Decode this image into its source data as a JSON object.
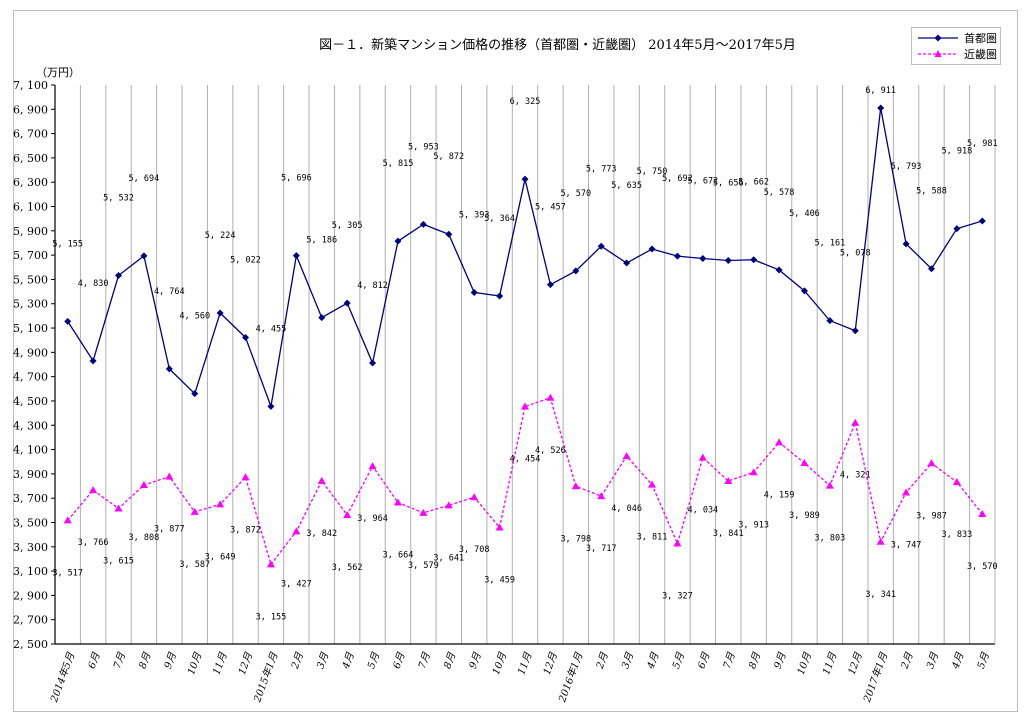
{
  "chart_data": {
    "type": "line",
    "title": "図－１．新築マンション価格の推移（首都圏・近畿圏） 2014年5月～2017年5月",
    "ylabel": "（万円）",
    "xlabel": "",
    "ylim": [
      2500,
      7100
    ],
    "yticks": [
      "7,100",
      "6,900",
      "6,700",
      "6,500",
      "6,300",
      "6,100",
      "5,900",
      "5,700",
      "5,500",
      "5,300",
      "5,100",
      "4,900",
      "4,700",
      "4,500",
      "4,300",
      "4,100",
      "3,900",
      "3,700",
      "3,500",
      "3,300",
      "3,100",
      "2,900",
      "2,700",
      "2,500"
    ],
    "grid": "vertical",
    "legend_position": "top-right",
    "categories": [
      "2014年5月",
      "6月",
      "7月",
      "8月",
      "9月",
      "10月",
      "11月",
      "12月",
      "2015年1月",
      "2月",
      "3月",
      "4月",
      "5月",
      "6月",
      "7月",
      "8月",
      "9月",
      "10月",
      "11月",
      "12月",
      "2016年1月",
      "2月",
      "3月",
      "4月",
      "5月",
      "6月",
      "7月",
      "8月",
      "9月",
      "10月",
      "11月",
      "12月",
      "2017年1月",
      "2月",
      "3月",
      "4月",
      "5月"
    ],
    "series": [
      {
        "name": "首都圏",
        "color": "#000080",
        "marker": "diamond",
        "style": "solid",
        "values": [
          5155,
          4830,
          5532,
          5694,
          4764,
          4560,
          5224,
          5022,
          4455,
          5696,
          5186,
          5305,
          4812,
          5815,
          5953,
          5872,
          5393,
          5364,
          6325,
          5457,
          5570,
          5773,
          5635,
          5750,
          5692,
          5672,
          5656,
          5662,
          5578,
          5406,
          5161,
          5078,
          6911,
          5793,
          5588,
          5918,
          5981
        ]
      },
      {
        "name": "近畿圏",
        "color": "#ff00ff",
        "marker": "triangle",
        "style": "dashed",
        "values": [
          3517,
          3766,
          3615,
          3808,
          3877,
          3587,
          3649,
          3872,
          3155,
          3427,
          3842,
          3562,
          3964,
          3664,
          3579,
          3641,
          3708,
          3459,
          4454,
          4526,
          3798,
          3717,
          4046,
          3811,
          3327,
          4034,
          3841,
          3913,
          4159,
          3989,
          3803,
          4321,
          3341,
          3747,
          3987,
          3833,
          3570
        ]
      }
    ]
  }
}
